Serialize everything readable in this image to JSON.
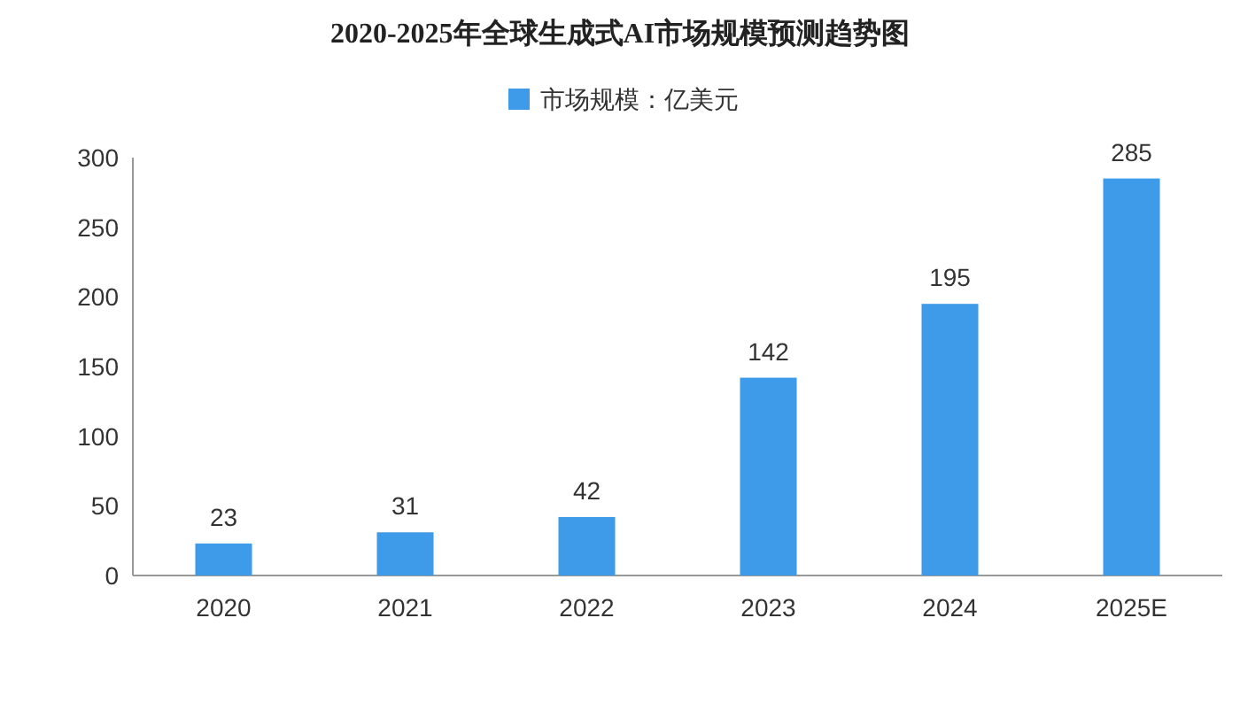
{
  "chart_data": {
    "type": "bar",
    "title": "2020-2025年全球生成式AI市场规模预测趋势图",
    "categories": [
      "2020",
      "2021",
      "2022",
      "2023",
      "2024",
      "2025E"
    ],
    "series": [
      {
        "name": "市场规模：亿美元",
        "color": "#3d9be9",
        "values": [
          23,
          31,
          42,
          142,
          195,
          285
        ]
      }
    ],
    "ylim": [
      0,
      300
    ],
    "yticks": [
      0,
      50,
      100,
      150,
      200,
      250,
      300
    ],
    "data_labels": true,
    "legend": "top",
    "grid": false
  }
}
